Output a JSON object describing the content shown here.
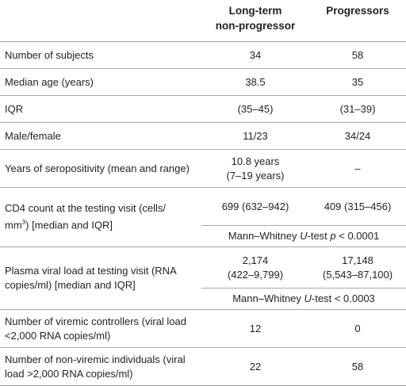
{
  "columns": {
    "ltnp_line1": "Long-term",
    "ltnp_line2": "non-progressor",
    "progressors": "Progressors"
  },
  "rows": {
    "subjects": {
      "label": "Number of subjects",
      "ltnp": "34",
      "prog": "58"
    },
    "median_age": {
      "label": "Median age (years)",
      "ltnp": "38.5",
      "prog": "35"
    },
    "iqr": {
      "label": "IQR",
      "ltnp": "(35–45)",
      "prog": "(31–39)"
    },
    "sex": {
      "label": "Male/female",
      "ltnp": "11/23",
      "prog": "34/24"
    },
    "seropositivity": {
      "label": "Years of seropositivity (mean and range)",
      "ltnp_line1": "10.8 years",
      "ltnp_line2": "(7–19 years)",
      "prog": "–"
    },
    "cd4": {
      "label_line1": "CD4 count at the testing visit (cells/",
      "label_line2_a": "mm",
      "label_line2_sup": "3",
      "label_line2_b": ") [median and IQR]",
      "ltnp": "699 (632–942)",
      "prog": "409 (315–456)",
      "test_a": "Mann–Whitney ",
      "test_u": "U",
      "test_b": "-test ",
      "test_p": "p",
      "test_c": " < 0.0001"
    },
    "plasma": {
      "label_line1": "Plasma viral load at testing visit (RNA",
      "label_line2": "copies/ml) [median and IQR]",
      "ltnp_line1": "2,174",
      "ltnp_line2": "(422–9,799)",
      "prog_line1": "17,148",
      "prog_line2": "(5,543–87,100)",
      "test_a": "Mann–Whitney ",
      "test_u": "U",
      "test_b": "-test < 0.0003"
    },
    "viremic": {
      "label_line1": "Number of viremic controllers (viral load",
      "label_line2": "<2,000 RNA copies/ml)",
      "ltnp": "12",
      "prog": "0"
    },
    "nonviremic": {
      "label_line1": "Number of non-viremic individuals (viral",
      "label_line2": "load >2,000 RNA copies/ml)",
      "ltnp": "22",
      "prog": "58"
    }
  }
}
